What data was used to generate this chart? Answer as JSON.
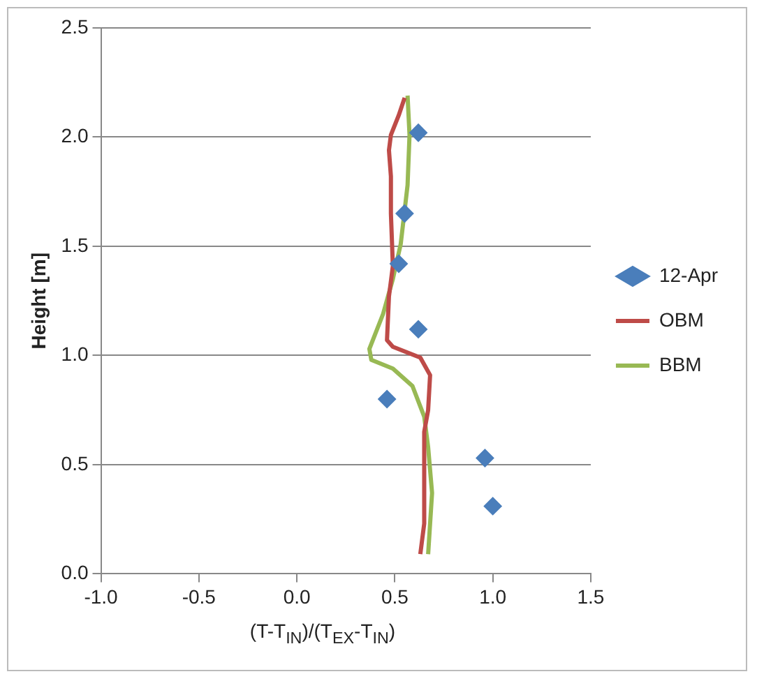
{
  "chart_data": {
    "type": "line",
    "xlabel": "(T-T$_{IN}$)/(T$_{EX}$-T$_{IN}$)",
    "ylabel": "Height [m]",
    "xlim": [
      -1,
      1.5
    ],
    "xticks": [
      {
        "value": -1,
        "label": "-1.0"
      },
      {
        "value": -0.5,
        "label": "-0.5"
      },
      {
        "value": 0,
        "label": "0.0"
      },
      {
        "value": 0.5,
        "label": "0.5"
      },
      {
        "value": 1,
        "label": "1.0"
      },
      {
        "value": 1.5,
        "label": "1.5"
      }
    ],
    "ylim": [
      0,
      2.5
    ],
    "yticks": [
      {
        "value": 0,
        "label": "0.0"
      },
      {
        "value": 0.5,
        "label": "0.5"
      },
      {
        "value": 1,
        "label": "1.0"
      },
      {
        "value": 1.5,
        "label": "1.5"
      },
      {
        "value": 2,
        "label": "2.0"
      },
      {
        "value": 2.5,
        "label": "2.5"
      }
    ],
    "grid": "y",
    "legend": "right",
    "series": [
      {
        "name": "12-Apr",
        "type": "scatter",
        "marker": "diamond",
        "color": "#4a7ebb",
        "x": [
          0.62,
          0.55,
          0.52,
          0.62,
          0.46,
          0.96,
          1.0
        ],
        "values": [
          2.02,
          1.65,
          1.42,
          1.12,
          0.8,
          0.53,
          0.31
        ]
      },
      {
        "name": "OBM",
        "type": "line",
        "marker": "none",
        "color": "#be4b48",
        "x": [
          0.55,
          0.52,
          0.48,
          0.47,
          0.48,
          0.48,
          0.49,
          0.47,
          0.46,
          0.49,
          0.63,
          0.68,
          0.67,
          0.65,
          0.65,
          0.63
        ],
        "values": [
          2.18,
          2.1,
          2.01,
          1.94,
          1.82,
          1.65,
          1.41,
          1.27,
          1.07,
          1.04,
          0.99,
          0.91,
          0.75,
          0.65,
          0.23,
          0.09
        ]
      },
      {
        "name": "BBM",
        "type": "line",
        "marker": "none",
        "color": "#98b954",
        "x": [
          0.565,
          0.575,
          0.565,
          0.53,
          0.49,
          0.44,
          0.37,
          0.38,
          0.49,
          0.59,
          0.65,
          0.67,
          0.69,
          0.67
        ],
        "values": [
          2.19,
          2.01,
          1.78,
          1.51,
          1.35,
          1.19,
          1.03,
          0.98,
          0.94,
          0.86,
          0.72,
          0.58,
          0.37,
          0.09
        ]
      }
    ]
  }
}
